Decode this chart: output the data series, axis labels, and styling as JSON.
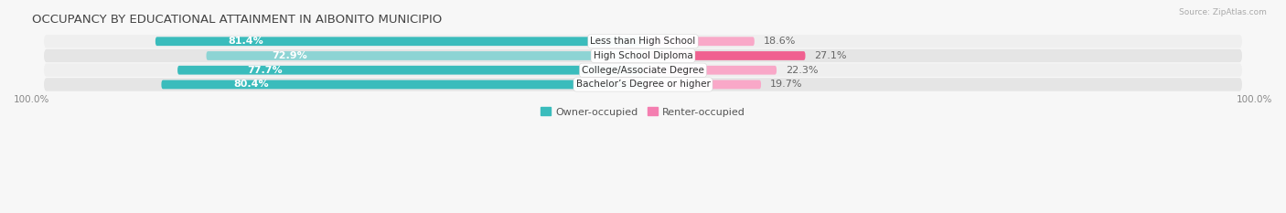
{
  "title": "OCCUPANCY BY EDUCATIONAL ATTAINMENT IN AIBONITO MUNICIPIO",
  "source": "Source: ZipAtlas.com",
  "categories": [
    "Less than High School",
    "High School Diploma",
    "College/Associate Degree",
    "Bachelor’s Degree or higher"
  ],
  "owner_values": [
    81.4,
    72.9,
    77.7,
    80.4
  ],
  "renter_values": [
    18.6,
    27.1,
    22.3,
    19.7
  ],
  "owner_color_row0": "#3abcbc",
  "owner_color_row1": "#8dd4d4",
  "owner_color_row2": "#3abcbc",
  "owner_color_row3": "#3abcbc",
  "owner_colors": [
    "#3abcbc",
    "#8dd4d4",
    "#3abcbc",
    "#3abcbc"
  ],
  "renter_color_row0": "#f9a8c8",
  "renter_color_row1": "#f06090",
  "renter_color_row2": "#f9a8c8",
  "renter_color_row3": "#f9a8c8",
  "renter_colors": [
    "#f9a8c8",
    "#f06090",
    "#f9a8c8",
    "#f9a8c8"
  ],
  "row_bg_color_even": "#efefef",
  "row_bg_color_odd": "#e5e5e5",
  "label_bg": "#ffffff",
  "title_fontsize": 9.5,
  "bar_fontsize": 8,
  "legend_fontsize": 8,
  "axis_fontsize": 7.5,
  "max_val": 100.0
}
